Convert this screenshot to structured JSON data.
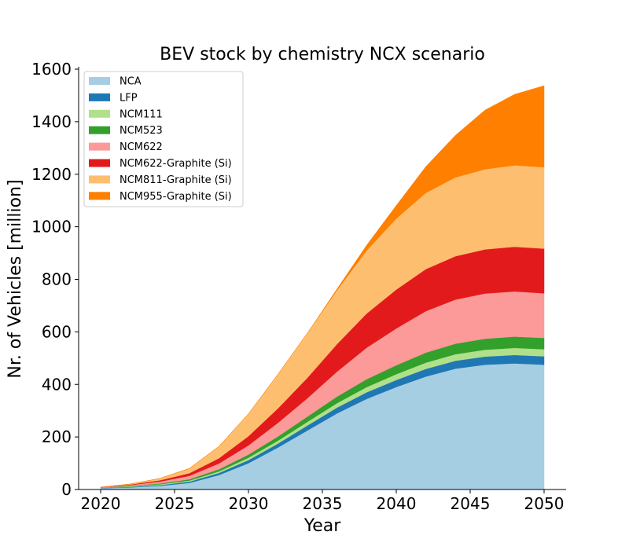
{
  "chart_data": {
    "type": "area",
    "stacked": true,
    "title": "BEV stock by chemistry NCX scenario",
    "xlabel": "Year",
    "ylabel": "Nr. of Vehicles [million]",
    "xlim": [
      2020,
      2050
    ],
    "ylim": [
      0,
      1600
    ],
    "xticks": [
      2020,
      2025,
      2030,
      2035,
      2040,
      2045,
      2050
    ],
    "yticks": [
      0,
      200,
      400,
      600,
      800,
      1000,
      1200,
      1400,
      1600
    ],
    "grid": false,
    "legend_position": "top-left",
    "x": [
      2020,
      2022,
      2024,
      2026,
      2028,
      2030,
      2032,
      2034,
      2036,
      2038,
      2040,
      2042,
      2044,
      2046,
      2048,
      2050
    ],
    "series": [
      {
        "name": "NCA",
        "color": "#a6cee3",
        "values": [
          5,
          8,
          14,
          25,
          55,
          100,
          160,
          225,
          290,
          345,
          390,
          430,
          460,
          475,
          480,
          475
        ]
      },
      {
        "name": "LFP",
        "color": "#1f78b4",
        "values": [
          1,
          2,
          3,
          5,
          8,
          12,
          15,
          19,
          22,
          25,
          27,
          29,
          30,
          31,
          32,
          32
        ]
      },
      {
        "name": "NCM111",
        "color": "#b2df8a",
        "values": [
          1,
          2,
          3,
          4,
          6,
          9,
          11,
          14,
          17,
          20,
          22,
          24,
          25,
          26,
          27,
          27
        ]
      },
      {
        "name": "NCM523",
        "color": "#33a02c",
        "values": [
          1,
          2,
          3,
          5,
          8,
          12,
          16,
          20,
          25,
          30,
          34,
          38,
          40,
          42,
          43,
          43
        ]
      },
      {
        "name": "NCM622",
        "color": "#fb9a99",
        "values": [
          1,
          3,
          7,
          13,
          22,
          35,
          52,
          70,
          95,
          120,
          140,
          158,
          168,
          172,
          172,
          170
        ]
      },
      {
        "name": "NCM622-Graphite (Si)",
        "color": "#e31a1c",
        "values": [
          0,
          2,
          5,
          10,
          20,
          35,
          55,
          78,
          105,
          130,
          148,
          160,
          165,
          168,
          170,
          170
        ]
      },
      {
        "name": "NCM811-Graphite (Si)",
        "color": "#fdbf6f",
        "values": [
          0,
          2,
          7,
          18,
          45,
          85,
          130,
          170,
          205,
          240,
          270,
          290,
          300,
          305,
          310,
          310
        ]
      },
      {
        "name": "NCM955-Graphite (Si)",
        "color": "#ff7f00",
        "values": [
          0,
          0,
          0,
          0,
          0,
          0,
          0,
          0,
          5,
          20,
          50,
          100,
          160,
          225,
          270,
          310
        ]
      }
    ]
  }
}
